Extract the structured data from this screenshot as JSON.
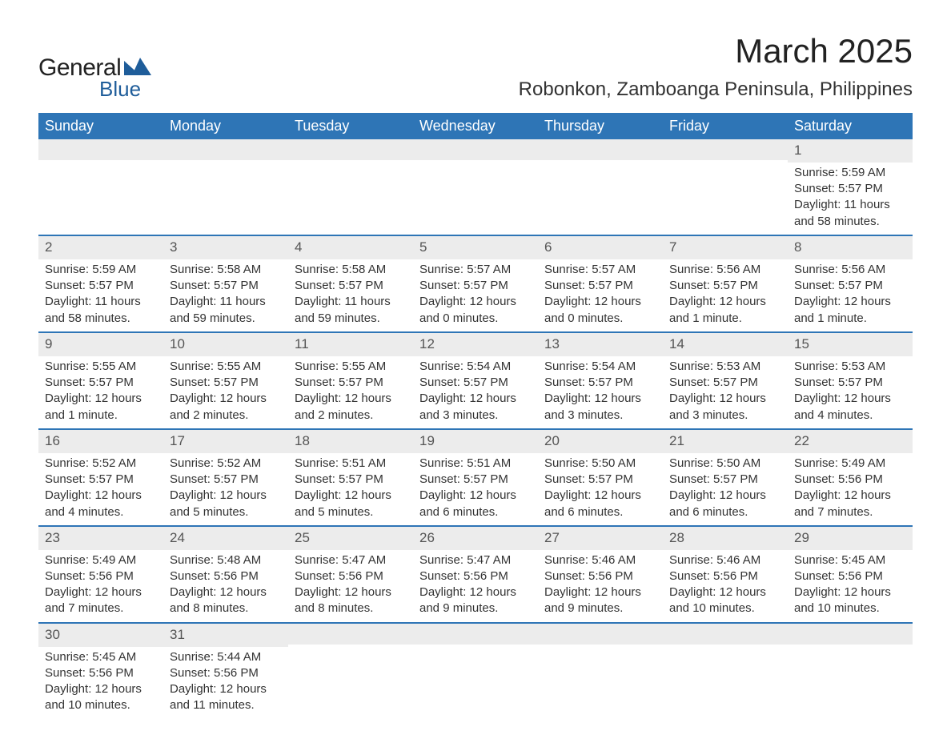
{
  "logo": {
    "text1": "General",
    "text2": "Blue",
    "shape_color": "#1f5d9a"
  },
  "title": "March 2025",
  "location": "Robonkon, Zamboanga Peninsula, Philippines",
  "header_bg": "#2e75b6",
  "header_fg": "#ffffff",
  "daynum_bg": "#ececec",
  "week_border": "#2e75b6",
  "days": [
    "Sunday",
    "Monday",
    "Tuesday",
    "Wednesday",
    "Thursday",
    "Friday",
    "Saturday"
  ],
  "weeks": [
    [
      null,
      null,
      null,
      null,
      null,
      null,
      {
        "n": "1",
        "sr": "Sunrise: 5:59 AM",
        "ss": "Sunset: 5:57 PM",
        "dl": "Daylight: 11 hours and 58 minutes."
      }
    ],
    [
      {
        "n": "2",
        "sr": "Sunrise: 5:59 AM",
        "ss": "Sunset: 5:57 PM",
        "dl": "Daylight: 11 hours and 58 minutes."
      },
      {
        "n": "3",
        "sr": "Sunrise: 5:58 AM",
        "ss": "Sunset: 5:57 PM",
        "dl": "Daylight: 11 hours and 59 minutes."
      },
      {
        "n": "4",
        "sr": "Sunrise: 5:58 AM",
        "ss": "Sunset: 5:57 PM",
        "dl": "Daylight: 11 hours and 59 minutes."
      },
      {
        "n": "5",
        "sr": "Sunrise: 5:57 AM",
        "ss": "Sunset: 5:57 PM",
        "dl": "Daylight: 12 hours and 0 minutes."
      },
      {
        "n": "6",
        "sr": "Sunrise: 5:57 AM",
        "ss": "Sunset: 5:57 PM",
        "dl": "Daylight: 12 hours and 0 minutes."
      },
      {
        "n": "7",
        "sr": "Sunrise: 5:56 AM",
        "ss": "Sunset: 5:57 PM",
        "dl": "Daylight: 12 hours and 1 minute."
      },
      {
        "n": "8",
        "sr": "Sunrise: 5:56 AM",
        "ss": "Sunset: 5:57 PM",
        "dl": "Daylight: 12 hours and 1 minute."
      }
    ],
    [
      {
        "n": "9",
        "sr": "Sunrise: 5:55 AM",
        "ss": "Sunset: 5:57 PM",
        "dl": "Daylight: 12 hours and 1 minute."
      },
      {
        "n": "10",
        "sr": "Sunrise: 5:55 AM",
        "ss": "Sunset: 5:57 PM",
        "dl": "Daylight: 12 hours and 2 minutes."
      },
      {
        "n": "11",
        "sr": "Sunrise: 5:55 AM",
        "ss": "Sunset: 5:57 PM",
        "dl": "Daylight: 12 hours and 2 minutes."
      },
      {
        "n": "12",
        "sr": "Sunrise: 5:54 AM",
        "ss": "Sunset: 5:57 PM",
        "dl": "Daylight: 12 hours and 3 minutes."
      },
      {
        "n": "13",
        "sr": "Sunrise: 5:54 AM",
        "ss": "Sunset: 5:57 PM",
        "dl": "Daylight: 12 hours and 3 minutes."
      },
      {
        "n": "14",
        "sr": "Sunrise: 5:53 AM",
        "ss": "Sunset: 5:57 PM",
        "dl": "Daylight: 12 hours and 3 minutes."
      },
      {
        "n": "15",
        "sr": "Sunrise: 5:53 AM",
        "ss": "Sunset: 5:57 PM",
        "dl": "Daylight: 12 hours and 4 minutes."
      }
    ],
    [
      {
        "n": "16",
        "sr": "Sunrise: 5:52 AM",
        "ss": "Sunset: 5:57 PM",
        "dl": "Daylight: 12 hours and 4 minutes."
      },
      {
        "n": "17",
        "sr": "Sunrise: 5:52 AM",
        "ss": "Sunset: 5:57 PM",
        "dl": "Daylight: 12 hours and 5 minutes."
      },
      {
        "n": "18",
        "sr": "Sunrise: 5:51 AM",
        "ss": "Sunset: 5:57 PM",
        "dl": "Daylight: 12 hours and 5 minutes."
      },
      {
        "n": "19",
        "sr": "Sunrise: 5:51 AM",
        "ss": "Sunset: 5:57 PM",
        "dl": "Daylight: 12 hours and 6 minutes."
      },
      {
        "n": "20",
        "sr": "Sunrise: 5:50 AM",
        "ss": "Sunset: 5:57 PM",
        "dl": "Daylight: 12 hours and 6 minutes."
      },
      {
        "n": "21",
        "sr": "Sunrise: 5:50 AM",
        "ss": "Sunset: 5:57 PM",
        "dl": "Daylight: 12 hours and 6 minutes."
      },
      {
        "n": "22",
        "sr": "Sunrise: 5:49 AM",
        "ss": "Sunset: 5:56 PM",
        "dl": "Daylight: 12 hours and 7 minutes."
      }
    ],
    [
      {
        "n": "23",
        "sr": "Sunrise: 5:49 AM",
        "ss": "Sunset: 5:56 PM",
        "dl": "Daylight: 12 hours and 7 minutes."
      },
      {
        "n": "24",
        "sr": "Sunrise: 5:48 AM",
        "ss": "Sunset: 5:56 PM",
        "dl": "Daylight: 12 hours and 8 minutes."
      },
      {
        "n": "25",
        "sr": "Sunrise: 5:47 AM",
        "ss": "Sunset: 5:56 PM",
        "dl": "Daylight: 12 hours and 8 minutes."
      },
      {
        "n": "26",
        "sr": "Sunrise: 5:47 AM",
        "ss": "Sunset: 5:56 PM",
        "dl": "Daylight: 12 hours and 9 minutes."
      },
      {
        "n": "27",
        "sr": "Sunrise: 5:46 AM",
        "ss": "Sunset: 5:56 PM",
        "dl": "Daylight: 12 hours and 9 minutes."
      },
      {
        "n": "28",
        "sr": "Sunrise: 5:46 AM",
        "ss": "Sunset: 5:56 PM",
        "dl": "Daylight: 12 hours and 10 minutes."
      },
      {
        "n": "29",
        "sr": "Sunrise: 5:45 AM",
        "ss": "Sunset: 5:56 PM",
        "dl": "Daylight: 12 hours and 10 minutes."
      }
    ],
    [
      {
        "n": "30",
        "sr": "Sunrise: 5:45 AM",
        "ss": "Sunset: 5:56 PM",
        "dl": "Daylight: 12 hours and 10 minutes."
      },
      {
        "n": "31",
        "sr": "Sunrise: 5:44 AM",
        "ss": "Sunset: 5:56 PM",
        "dl": "Daylight: 12 hours and 11 minutes."
      },
      null,
      null,
      null,
      null,
      null
    ]
  ]
}
